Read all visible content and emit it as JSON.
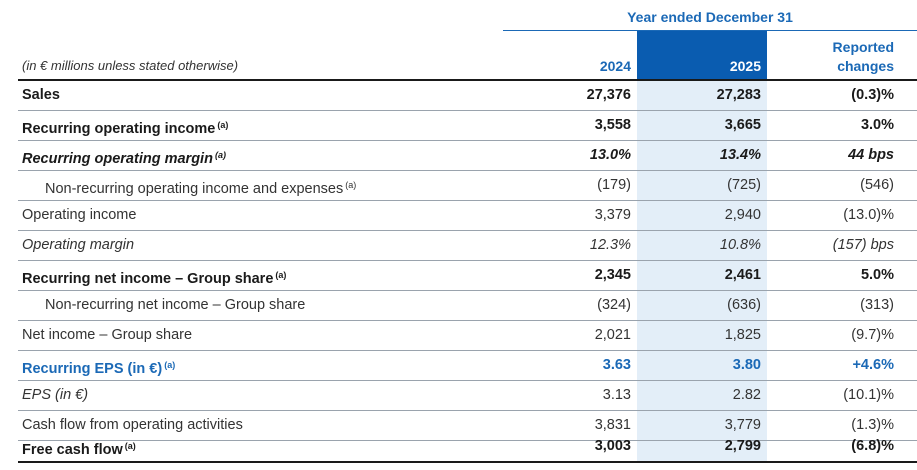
{
  "header": {
    "period": "Year ended December 31",
    "units": "(in € millions unless stated otherwise)",
    "col_2024": "2024",
    "col_2025": "2025",
    "col_change_line1": "Reported",
    "col_change_line2": "changes"
  },
  "rows": [
    {
      "label": "Sales",
      "note": "",
      "v2024": "27,376",
      "v2025": "27,283",
      "change": "(0.3)%"
    },
    {
      "label": "Recurring operating income",
      "note": "(a)",
      "v2024": "3,558",
      "v2025": "3,665",
      "change": "3.0%"
    },
    {
      "label": "Recurring operating margin",
      "note": "(a)",
      "v2024": "13.0%",
      "v2025": "13.4%",
      "change": "44 bps"
    },
    {
      "label": "Non-recurring operating income and expenses",
      "note": "(a)",
      "v2024": "(179)",
      "v2025": "(725)",
      "change": "(546)"
    },
    {
      "label": "Operating income",
      "note": "",
      "v2024": "3,379",
      "v2025": "2,940",
      "change": "(13.0)%"
    },
    {
      "label": "Operating margin",
      "note": "",
      "v2024": "12.3%",
      "v2025": "10.8%",
      "change": "(157) bps"
    },
    {
      "label": "Recurring net income – Group share",
      "note": "(a)",
      "v2024": "2,345",
      "v2025": "2,461",
      "change": "5.0%"
    },
    {
      "label": "Non-recurring net income – Group share",
      "note": "",
      "v2024": "(324)",
      "v2025": "(636)",
      "change": "(313)"
    },
    {
      "label": "Net income – Group share",
      "note": "",
      "v2024": "2,021",
      "v2025": "1,825",
      "change": "(9.7)%"
    },
    {
      "label": "Recurring EPS (in €)",
      "note": "(a)",
      "v2024": "3.63",
      "v2025": "3.80",
      "change": "+4.6%"
    },
    {
      "label": "EPS (in €)",
      "note": "",
      "v2024": "3.13",
      "v2025": "2.82",
      "change": "(10.1)%"
    },
    {
      "label": "Cash flow from operating activities",
      "note": "",
      "v2024": "3,831",
      "v2025": "3,779",
      "change": "(1.3)%"
    },
    {
      "label": "Free cash flow",
      "note": "(a)",
      "v2024": "3,003",
      "v2025": "2,799",
      "change": "(6.8)%"
    }
  ]
}
